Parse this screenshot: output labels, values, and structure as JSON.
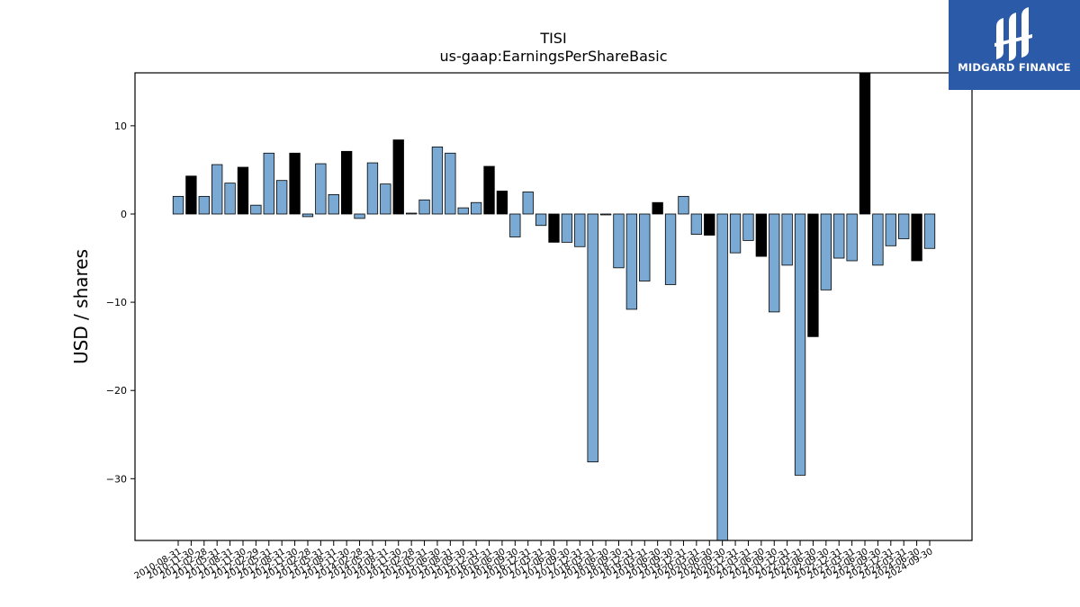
{
  "chart_data": {
    "type": "bar",
    "title": "TISI",
    "subtitle": "us-gaap:EarningsPerShareBasic",
    "xlabel": "",
    "ylabel": "USD / shares",
    "ylim": [
      -37,
      16
    ],
    "yticks": [
      10,
      0,
      -10,
      -20,
      -30
    ],
    "grid": false,
    "colors": {
      "quarterly": "#7aaad4",
      "annual": "#000000",
      "edge": "#000000"
    },
    "categories": [
      "2010-08-31",
      "2010-11-30",
      "2011-02-28",
      "2011-05-31",
      "2011-08-31",
      "2011-11-30",
      "2012-02-29",
      "2012-05-31",
      "2012-08-31",
      "2012-11-30",
      "2013-02-28",
      "2013-05-31",
      "2013-08-31",
      "2013-11-30",
      "2014-02-28",
      "2014-05-31",
      "2014-08-31",
      "2014-11-30",
      "2015-02-28",
      "2015-05-31",
      "2015-06-30",
      "2015-08-31",
      "2015-09-30",
      "2015-12-31",
      "2016-03-31",
      "2016-06-30",
      "2016-09-30",
      "2016-12-31",
      "2017-03-31",
      "2017-06-30",
      "2017-09-30",
      "2017-12-31",
      "2018-03-31",
      "2018-06-30",
      "2018-09-30",
      "2018-12-31",
      "2019-03-31",
      "2019-06-30",
      "2019-09-30",
      "2019-12-31",
      "2020-03-31",
      "2020-06-30",
      "2020-09-30",
      "2020-12-31",
      "2021-03-31",
      "2021-06-30",
      "2021-09-30",
      "2021-12-31",
      "2022-03-31",
      "2022-06-30",
      "2022-09-30",
      "2022-12-31",
      "2023-03-31",
      "2023-06-30",
      "2023-09-30",
      "2023-12-31",
      "2024-03-31",
      "2024-06-30",
      "2024-09-30"
    ],
    "values": [
      2.0,
      4.3,
      2.0,
      5.6,
      3.5,
      5.3,
      1.0,
      6.9,
      3.8,
      6.9,
      -0.3,
      5.7,
      2.2,
      7.1,
      -0.5,
      5.8,
      3.4,
      8.4,
      0.1,
      1.6,
      7.6,
      6.9,
      0.7,
      1.3,
      5.4,
      2.6,
      -2.6,
      2.5,
      -1.3,
      -3.2,
      -3.2,
      -3.7,
      -28.1,
      -0.1,
      -6.1,
      -10.8,
      -7.6,
      1.3,
      -8.0,
      2.0,
      -2.3,
      -2.4,
      -37.0,
      -4.4,
      -3.0,
      -4.8,
      -11.1,
      -5.8,
      -29.6,
      -13.9,
      -8.6,
      -5.0,
      -5.3,
      16.0,
      -5.8,
      -3.6,
      -2.8,
      -5.3,
      -3.9
    ],
    "annual": [
      false,
      true,
      false,
      false,
      false,
      true,
      false,
      false,
      false,
      true,
      false,
      false,
      false,
      true,
      false,
      false,
      false,
      true,
      false,
      false,
      false,
      false,
      false,
      false,
      true,
      true,
      false,
      false,
      false,
      true,
      false,
      false,
      false,
      false,
      false,
      false,
      false,
      true,
      false,
      false,
      false,
      true,
      false,
      false,
      false,
      true,
      false,
      false,
      false,
      true,
      false,
      false,
      false,
      true,
      false,
      false,
      false,
      true,
      false
    ]
  },
  "logo": {
    "text": "MIDGARD FINANCE"
  }
}
